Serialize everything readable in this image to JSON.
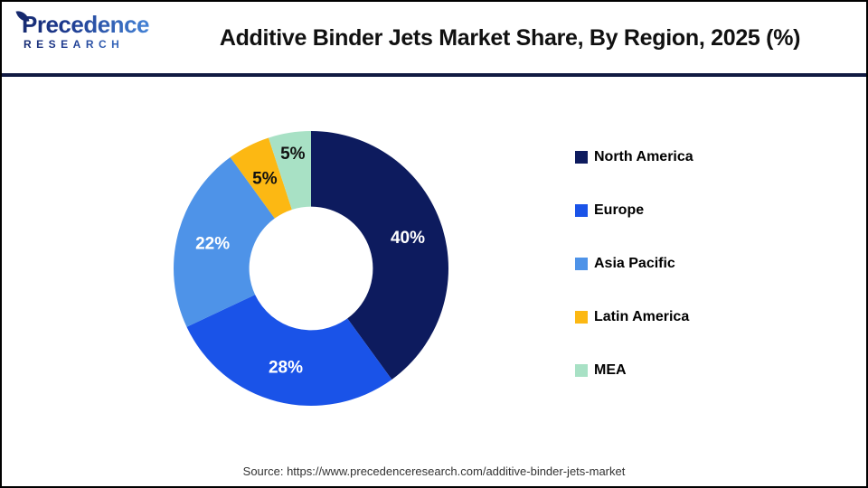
{
  "header": {
    "logo": {
      "brand": "Precedence",
      "sub": "RESEARCH"
    },
    "title": "Additive Binder Jets Market Share, By Region, 2025 (%)"
  },
  "chart_data": {
    "type": "pie",
    "subtype": "donut",
    "title": "Additive Binder Jets Market Share, By Region, 2025 (%)",
    "value_suffix": "%",
    "start_angle_deg": 0,
    "direction": "clockwise",
    "inner_radius_ratio": 0.45,
    "legend_position": "right",
    "categories": [
      "North America",
      "Europe",
      "Asia Pacific",
      "Latin America",
      "MEA"
    ],
    "values": [
      40,
      28,
      22,
      5,
      5
    ],
    "slices": [
      {
        "label": "North America",
        "value": 40,
        "color": "#0d1b5e",
        "label_color": "#ffffff",
        "label_radius": 0.74
      },
      {
        "label": "Europe",
        "value": 28,
        "color": "#1a53e8",
        "label_color": "#ffffff",
        "label_radius": 0.74
      },
      {
        "label": "Asia Pacific",
        "value": 22,
        "color": "#4e93e8",
        "label_color": "#ffffff",
        "label_radius": 0.74
      },
      {
        "label": "Latin America",
        "value": 5,
        "color": "#fcb813",
        "label_color": "#111111",
        "label_radius": 0.74
      },
      {
        "label": "MEA",
        "value": 5,
        "color": "#a8e1c5",
        "label_color": "#111111",
        "label_radius": 0.85
      }
    ]
  },
  "footer": {
    "source": "Source: https://www.precedenceresearch.com/additive-binder-jets-market"
  }
}
